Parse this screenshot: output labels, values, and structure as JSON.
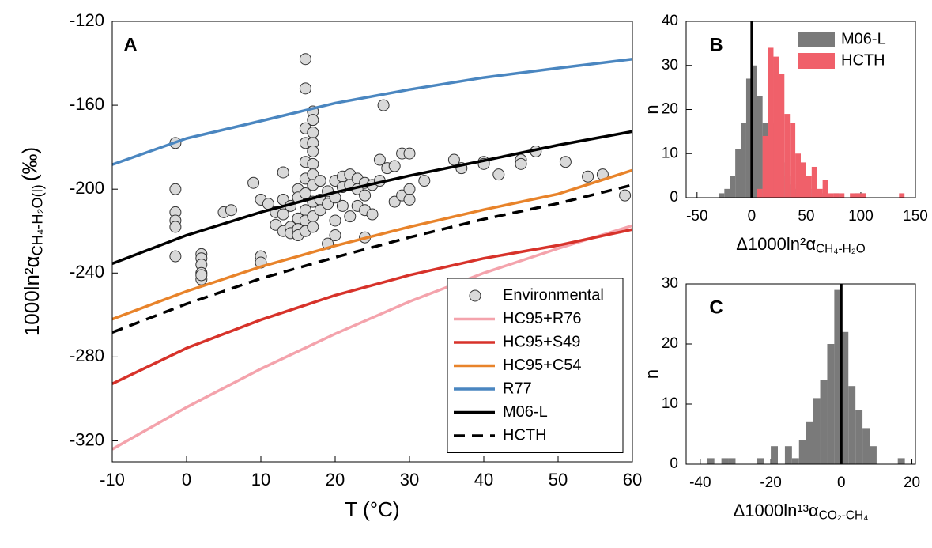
{
  "chart_data": [
    {
      "type": "line",
      "panel": "A",
      "xlabel": "T (°C)",
      "ylabel": [
        "1000ln²α",
        "CH₄-H₂O(l)",
        "(‰)"
      ],
      "xlim": [
        -10,
        60
      ],
      "xticks": [
        -10,
        0,
        10,
        20,
        30,
        40,
        50,
        60
      ],
      "ylim": [
        -330,
        -120
      ],
      "yticks": [
        -120,
        -160,
        -200,
        -240,
        -280,
        -320
      ],
      "x": [
        -10,
        0,
        10,
        20,
        30,
        40,
        50,
        60
      ],
      "series": [
        {
          "name": "Environmental",
          "type": "scatter",
          "color": "#d9d9d9",
          "x": [
            -1.5,
            -1.5,
            -1.5,
            -1.5,
            -1.5,
            -1.5,
            2,
            2,
            2,
            2,
            2,
            2,
            5,
            6,
            9,
            10,
            10,
            10,
            11,
            12,
            12,
            13,
            13,
            13,
            13,
            14,
            14,
            14,
            15,
            15,
            15,
            15,
            15,
            16,
            16,
            16,
            16,
            16,
            16,
            16,
            16,
            16,
            16,
            17,
            17,
            17,
            17,
            17,
            17,
            17,
            17,
            17,
            17,
            17,
            18,
            18,
            18,
            19,
            19,
            19,
            20,
            20,
            20,
            20,
            21,
            21,
            21,
            22,
            22,
            22,
            23,
            23,
            23,
            24,
            24,
            24,
            24,
            25,
            25,
            26,
            26,
            26.5,
            27,
            28,
            28,
            29,
            29,
            30,
            30,
            30,
            32,
            36,
            37,
            40,
            40,
            42,
            45,
            45,
            47,
            51,
            54,
            56,
            59
          ],
          "values": [
            -178,
            -200,
            -211,
            -215,
            -218,
            -232,
            -231,
            -233,
            -236,
            -240,
            -243,
            -241,
            -211,
            -210,
            -197,
            -205,
            -232,
            -235,
            -207,
            -211,
            -217,
            -192,
            -205,
            -212,
            -220,
            -208,
            -218,
            -221,
            -200,
            -204,
            -214,
            -219,
            -222,
            -138,
            -152,
            -171,
            -178,
            -187,
            -195,
            -202,
            -210,
            -215,
            -220,
            -163,
            -167,
            -173,
            -178,
            -182,
            -188,
            -193,
            -198,
            -206,
            -213,
            -218,
            -196,
            -205,
            -210,
            -201,
            -207,
            -226,
            -196,
            -204,
            -215,
            -222,
            -194,
            -199,
            -208,
            -193,
            -198,
            -213,
            -195,
            -200,
            -208,
            -197,
            -203,
            -210,
            -223,
            -198,
            -212,
            -186,
            -196,
            -160,
            -190,
            -206,
            -189,
            -183,
            -203,
            -183,
            -200,
            -205,
            -196,
            -186,
            -190,
            -187,
            -188,
            -193,
            -186,
            -188,
            -182,
            -187,
            -194,
            -193,
            -203
          ]
        },
        {
          "name": "HC95+R76",
          "color": "#f4a3ac",
          "values": [
            -324,
            -304,
            -285.7,
            -269,
            -253.6,
            -240,
            -228.3,
            -217.4
          ]
        },
        {
          "name": "HC95+S49",
          "color": "#d7322a",
          "values": [
            -292.8,
            -275.8,
            -262.3,
            -250.6,
            -241,
            -233,
            -226.8,
            -219.2
          ]
        },
        {
          "name": "HC95+C54",
          "color": "#e8832a",
          "values": [
            -262,
            -248.7,
            -237,
            -227,
            -218,
            -209.8,
            -202.3,
            -191
          ]
        },
        {
          "name": "R77",
          "color": "#4a86c0",
          "values": [
            -188.3,
            -175.8,
            -167.5,
            -159,
            -152.5,
            -146.8,
            -142.3,
            -138
          ]
        },
        {
          "name": "M06-L",
          "color": "#000000",
          "values": [
            -235.5,
            -222,
            -211,
            -201.5,
            -193.6,
            -186.4,
            -179,
            -172.5
          ]
        },
        {
          "name": "HCTH",
          "color": "#000000",
          "style": "dashed",
          "values": [
            -268.3,
            -254.7,
            -242.6,
            -232.5,
            -223,
            -214.3,
            -206.8,
            -198
          ]
        }
      ],
      "legend": "lower right"
    },
    {
      "type": "histogram",
      "panel": "B",
      "xlabel": [
        "Δ1000ln²α",
        "CH₄-H₂O"
      ],
      "ylabel": "n",
      "xlim": [
        -60,
        150
      ],
      "xticks": [
        -50,
        0,
        50,
        100,
        150
      ],
      "ylim": [
        0,
        40
      ],
      "yticks": [
        0,
        10,
        20,
        30,
        40
      ],
      "vline": 0,
      "bins": [
        -35,
        -30,
        -25,
        -20,
        -15,
        -10,
        -5,
        0,
        5,
        10,
        15,
        20,
        25,
        30,
        35,
        40,
        45,
        50,
        55,
        60,
        65,
        70,
        75,
        80,
        85,
        90,
        95,
        100,
        105,
        110,
        115,
        120,
        125,
        130,
        135,
        140
      ],
      "series": [
        {
          "name": "M06-L",
          "color": "#7a7a7a",
          "values": [
            0,
            1,
            2,
            5,
            11,
            17,
            27,
            30,
            23,
            17,
            17,
            12,
            8,
            5,
            3,
            2,
            1,
            2,
            1,
            0,
            1,
            0,
            1,
            0,
            0,
            0,
            1,
            1,
            0,
            0,
            0,
            0,
            0,
            0,
            0
          ]
        },
        {
          "name": "HCTH",
          "color": "#f0606a",
          "values": [
            0,
            0,
            0,
            0,
            0,
            0,
            0,
            0,
            2,
            14,
            34,
            32,
            28,
            19,
            17,
            10,
            8,
            5,
            7,
            2,
            4,
            1,
            1,
            1,
            0,
            1,
            1,
            1,
            0,
            0,
            0,
            0,
            0,
            0,
            1
          ]
        }
      ],
      "legend": "upper right"
    },
    {
      "type": "histogram",
      "panel": "C",
      "xlabel": [
        "Δ1000ln¹³α",
        "CO₂-CH₄"
      ],
      "ylabel": "n",
      "xlim": [
        -44,
        21
      ],
      "xticks": [
        -40,
        -20,
        0,
        20
      ],
      "ylim": [
        0,
        30
      ],
      "yticks": [
        0,
        10,
        20,
        30
      ],
      "vline": 0,
      "bins": [
        -40,
        -38,
        -36,
        -34,
        -32,
        -30,
        -28,
        -26,
        -24,
        -22,
        -20,
        -18,
        -16,
        -14,
        -12,
        -10,
        -8,
        -6,
        -4,
        -2,
        0,
        2,
        4,
        6,
        8,
        10,
        12,
        14,
        16,
        18,
        20
      ],
      "series": [
        {
          "color": "#7a7a7a",
          "values": [
            0,
            1,
            0,
            1,
            1,
            0,
            0,
            0,
            1,
            0,
            3,
            0,
            3,
            1,
            4,
            7,
            11,
            14,
            20,
            29,
            22,
            13,
            9,
            6,
            3,
            0,
            0,
            0,
            1,
            0
          ]
        }
      ]
    }
  ]
}
